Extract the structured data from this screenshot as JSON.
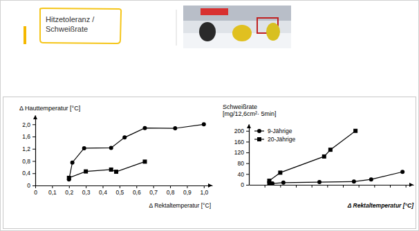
{
  "slide": {
    "title": [
      "Hitzetoleranz /",
      "Schweißrate"
    ]
  },
  "chart_data": [
    {
      "type": "line",
      "xlabel": "Δ Rektaltemperatur [°C]",
      "ylabel": "Δ Hauttemperatur [°C]",
      "xlim": [
        0,
        1.05
      ],
      "ylim": [
        0,
        2.3
      ],
      "xticks": [
        0,
        {
          "value": 0.1,
          "label": "0,1"
        },
        {
          "value": 0.2,
          "label": "0,2"
        },
        {
          "value": 0.3,
          "label": "0,3"
        },
        {
          "value": 0.4,
          "label": "0,4"
        },
        {
          "value": 0.5,
          "label": "0,5"
        },
        {
          "value": 0.6,
          "label": "0,6"
        },
        {
          "value": 0.7,
          "label": "0,7"
        },
        {
          "value": 0.8,
          "label": "0,8"
        },
        {
          "value": 0.9,
          "label": "0,9"
        },
        {
          "value": 1.0,
          "label": "1,0"
        }
      ],
      "yticks": [
        0,
        {
          "value": 0.4,
          "label": "0,4"
        },
        {
          "value": 0.8,
          "label": "0,8"
        },
        {
          "value": 1.2,
          "label": "1,2"
        },
        {
          "value": 1.6,
          "label": "1,6"
        },
        {
          "value": 2.0,
          "label": "2,0"
        }
      ],
      "grid": false,
      "series": [
        {
          "color": "#000000",
          "marker": "circle",
          "x": [
            0.2,
            0.22,
            0.29,
            0.45,
            0.53,
            0.65,
            0.83,
            1.0
          ],
          "values": [
            0.2,
            0.75,
            1.22,
            1.23,
            1.57,
            1.88,
            1.87,
            2.0
          ]
        },
        {
          "color": "#000000",
          "marker": "square",
          "x": [
            0.2,
            0.3,
            0.45,
            0.48,
            0.65
          ],
          "values": [
            0.25,
            0.46,
            0.52,
            0.45,
            0.78
          ]
        }
      ]
    },
    {
      "type": "line",
      "xlabel": "Δ Rektaltemperatur [°C]",
      "ylabel": [
        "Schweißrate",
        "[mg/12,6cm²· 5min]"
      ],
      "xlim": [
        0,
        1.05
      ],
      "ylim": [
        0,
        225
      ],
      "xticks": [
        0.1,
        0.2,
        0.3,
        0.4,
        0.5,
        0.6,
        0.7,
        0.8,
        0.9,
        1.0
      ],
      "yticks": [
        0,
        40,
        80,
        120,
        160,
        200
      ],
      "tick_labels": "y",
      "grid": false,
      "legend": "upper left",
      "series": [
        {
          "name": "9-Jährige",
          "color": "#000000",
          "marker": "circle",
          "x": [
            0.15,
            0.22,
            0.45,
            0.67,
            0.78,
            0.98
          ],
          "values": [
            5,
            8,
            10,
            12,
            20,
            48
          ]
        },
        {
          "name": "20-Jährige",
          "color": "#000000",
          "marker": "square",
          "x": [
            0.13,
            0.13,
            0.2,
            0.48,
            0.52,
            0.68
          ],
          "values": [
            5,
            15,
            45,
            105,
            130,
            200
          ]
        }
      ]
    }
  ]
}
